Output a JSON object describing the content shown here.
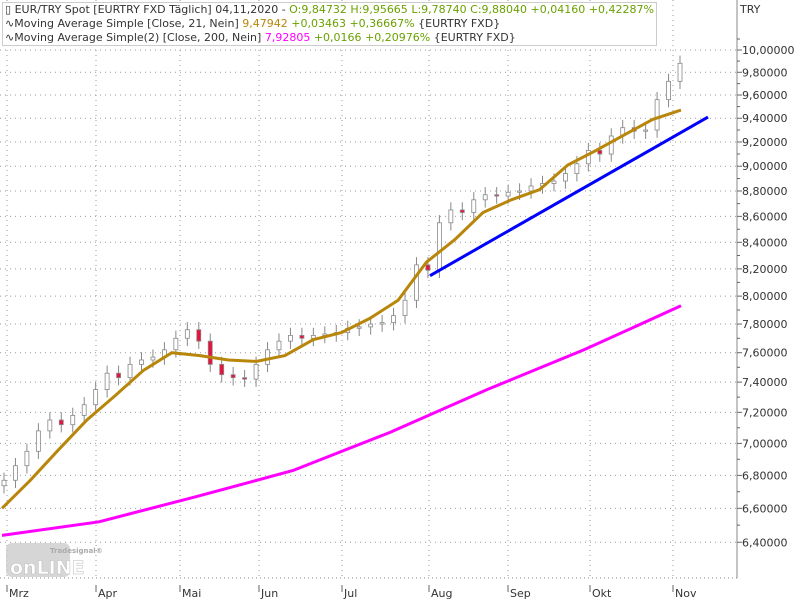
{
  "legend": {
    "main": {
      "symbol_icon": "candle-icon",
      "name": "EUR/TRY Spot [EURTRY FXD  Täglich]",
      "date": "04,11,2020 -",
      "open": "O:9,84732",
      "high": "H:9,95665",
      "low": "L:9,78740",
      "close": "C:9,88040",
      "change": "+0,04160",
      "change_pct": "+0,42287%"
    },
    "ma21": {
      "icon": "wave-icon",
      "name": "Moving Average Simple [Close, 21, Nein]",
      "value": "9,47942",
      "change": "+0,03463",
      "change_pct": "+0,36667%",
      "source": "{EURTRY FXD}"
    },
    "ma200": {
      "icon": "wave-icon",
      "name": "Moving Average Simple(2) [Close, 200, Nein]",
      "value": "7,92805",
      "change": "+0,0166",
      "change_pct": "+0,20976%",
      "source": "{EURTRY FXD}"
    }
  },
  "unit_label": "TRY",
  "logo": {
    "brand": "Tradesignal®",
    "text": "onLINE"
  },
  "chart_data": {
    "type": "candlestick",
    "y_scale": "log",
    "ylim": [
      6.25,
      10.1
    ],
    "grid": true,
    "x_range": [
      "2020-03-02",
      "2020-11-04"
    ],
    "x_ticks": [
      "Mrz",
      "Apr",
      "Mai",
      "Jun",
      "Jul",
      "Aug",
      "Sep",
      "Okt",
      "Nov"
    ],
    "y_ticks": [
      "6,40000",
      "6,60000",
      "6,80000",
      "7,00000",
      "7,20000",
      "7,40000",
      "7,60000",
      "7,80000",
      "8,00000",
      "8,20000",
      "8,40000",
      "8,60000",
      "8,80000",
      "9,00000",
      "9,20000",
      "9,40000",
      "9,60000",
      "9,80000",
      "10,00000"
    ],
    "y_tick_values": [
      6.4,
      6.6,
      6.8,
      7.0,
      7.2,
      7.4,
      7.6,
      7.8,
      8.0,
      8.2,
      8.4,
      8.6,
      8.8,
      9.0,
      9.2,
      9.4,
      9.6,
      9.8,
      10.0
    ],
    "closes": [
      6.77,
      6.86,
      6.95,
      7.08,
      7.15,
      7.12,
      7.18,
      7.25,
      7.35,
      7.46,
      7.43,
      7.52,
      7.55,
      7.57,
      7.62,
      7.7,
      7.76,
      7.68,
      7.52,
      7.45,
      7.43,
      7.42,
      7.52,
      7.62,
      7.68,
      7.72,
      7.7,
      7.72,
      7.73,
      7.74,
      7.77,
      7.78,
      7.8,
      7.81,
      7.86,
      7.97,
      8.23,
      8.19,
      8.55,
      8.65,
      8.63,
      8.73,
      8.77,
      8.76,
      8.79,
      8.8,
      8.84,
      8.86,
      8.88,
      8.94,
      9.02,
      9.13,
      9.1,
      9.25,
      9.32,
      9.29,
      9.3,
      9.56,
      9.72,
      9.88
    ],
    "series": [
      {
        "name": "Moving Average Simple [Close, 21, Nein]",
        "color": "#b8860b",
        "values": [
          6.6,
          6.77,
          6.96,
          7.15,
          7.31,
          7.48,
          7.6,
          7.58,
          7.55,
          7.54,
          7.58,
          7.69,
          7.74,
          7.84,
          7.97,
          8.25,
          8.42,
          8.63,
          8.73,
          8.81,
          9.01,
          9.13,
          9.26,
          9.39,
          9.47
        ]
      },
      {
        "name": "Moving Average Simple(2) [Close, 200, Nein]",
        "color": "#ff00ff",
        "values": [
          6.44,
          6.52,
          6.67,
          6.83,
          7.07,
          7.35,
          7.62,
          7.93
        ]
      }
    ],
    "trendline": {
      "color": "#0000ff",
      "from": 8.15,
      "to": 9.41
    }
  }
}
